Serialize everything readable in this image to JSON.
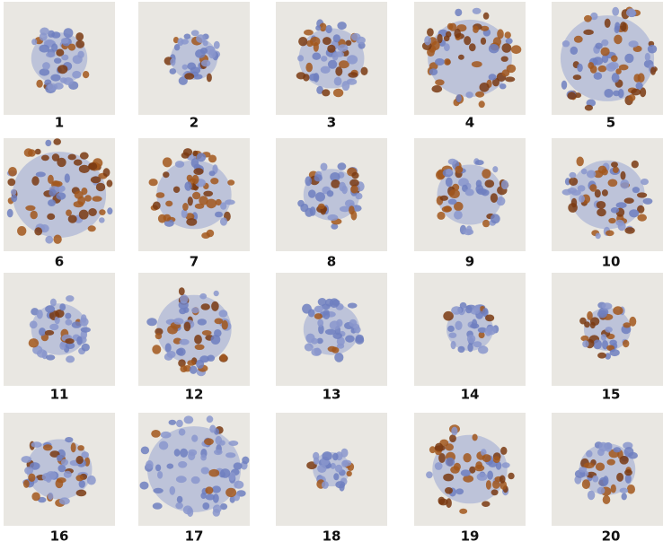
{
  "panels": [
    {
      "label": "1"
    },
    {
      "label": "2"
    },
    {
      "label": "3"
    },
    {
      "label": "4"
    },
    {
      "label": "5"
    },
    {
      "label": "6"
    },
    {
      "label": "7"
    },
    {
      "label": "8"
    },
    {
      "label": "9"
    },
    {
      "label": "10"
    },
    {
      "label": "11"
    },
    {
      "label": "12"
    },
    {
      "label": "13"
    },
    {
      "label": "14"
    },
    {
      "label": "15"
    },
    {
      "label": "16"
    },
    {
      "label": "17"
    },
    {
      "label": "18"
    },
    {
      "label": "19"
    },
    {
      "label": "20"
    }
  ]
}
